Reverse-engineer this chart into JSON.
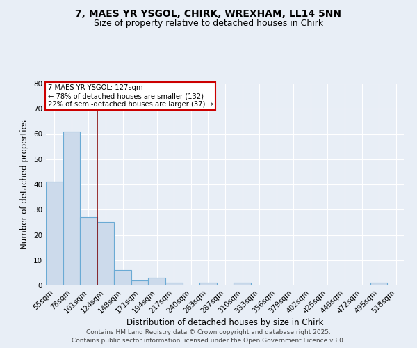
{
  "title1": "7, MAES YR YSGOL, CHIRK, WREXHAM, LL14 5NN",
  "title2": "Size of property relative to detached houses in Chirk",
  "xlabel": "Distribution of detached houses by size in Chirk",
  "ylabel": "Number of detached properties",
  "categories": [
    "55sqm",
    "78sqm",
    "101sqm",
    "124sqm",
    "148sqm",
    "171sqm",
    "194sqm",
    "217sqm",
    "240sqm",
    "263sqm",
    "287sqm",
    "310sqm",
    "333sqm",
    "356sqm",
    "379sqm",
    "402sqm",
    "425sqm",
    "449sqm",
    "472sqm",
    "495sqm",
    "518sqm"
  ],
  "values": [
    41,
    61,
    27,
    25,
    6,
    2,
    3,
    1,
    0,
    1,
    0,
    1,
    0,
    0,
    0,
    0,
    0,
    0,
    0,
    1,
    0
  ],
  "bar_color": "#ccdaeb",
  "bar_edge_color": "#6aaad4",
  "ylim": [
    0,
    80
  ],
  "yticks": [
    0,
    10,
    20,
    30,
    40,
    50,
    60,
    70,
    80
  ],
  "vline_x": 2.5,
  "vline_color": "#8B1010",
  "annotation_text": "7 MAES YR YSGOL: 127sqm\n← 78% of detached houses are smaller (132)\n22% of semi-detached houses are larger (37) →",
  "annotation_box_color": "#ffffff",
  "annotation_box_edge": "#cc0000",
  "footer1": "Contains HM Land Registry data © Crown copyright and database right 2025.",
  "footer2": "Contains public sector information licensed under the Open Government Licence v3.0.",
  "bg_color": "#e8eef6",
  "plot_bg_color": "#e8eef6",
  "title_fontsize": 10,
  "subtitle_fontsize": 9,
  "axis_label_fontsize": 8.5,
  "tick_fontsize": 7.5,
  "footer_fontsize": 6.5,
  "grid_color": "#ffffff",
  "spine_color": "#aaaaaa"
}
